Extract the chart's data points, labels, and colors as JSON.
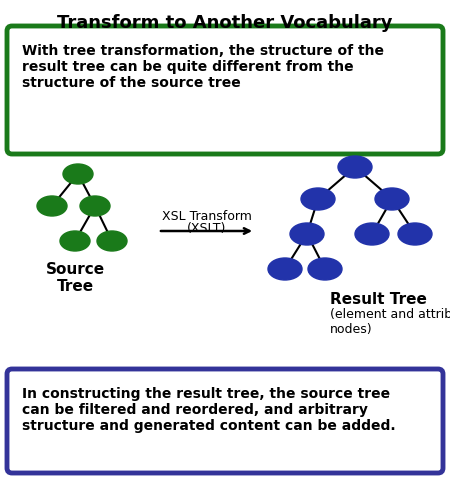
{
  "title": "Transform to Another Vocabulary",
  "title_fontsize": 13,
  "top_box_text": "With tree transformation, the structure of the\nresult tree can be quite different from the\nstructure of the source tree",
  "top_box_border_color": "#1a7a1a",
  "top_box_fill_color": "#ffffff",
  "bottom_box_text": "In constructing the result tree, the source tree\ncan be filtered and reordered, and arbitrary\nstructure and generated content can be added.",
  "bottom_box_border_color": "#333399",
  "bottom_box_fill_color": "#ffffff",
  "source_tree_color": "#1a7a1a",
  "result_tree_color": "#2233aa",
  "arrow_label_line1": "XSL Transform",
  "arrow_label_line2": "(XSLT)",
  "source_label": "Source\nTree",
  "result_label_bold": "Result Tree",
  "result_label_normal": "(element and attribute\nnodes)",
  "bg_color": "#ffffff",
  "text_color": "#000000"
}
